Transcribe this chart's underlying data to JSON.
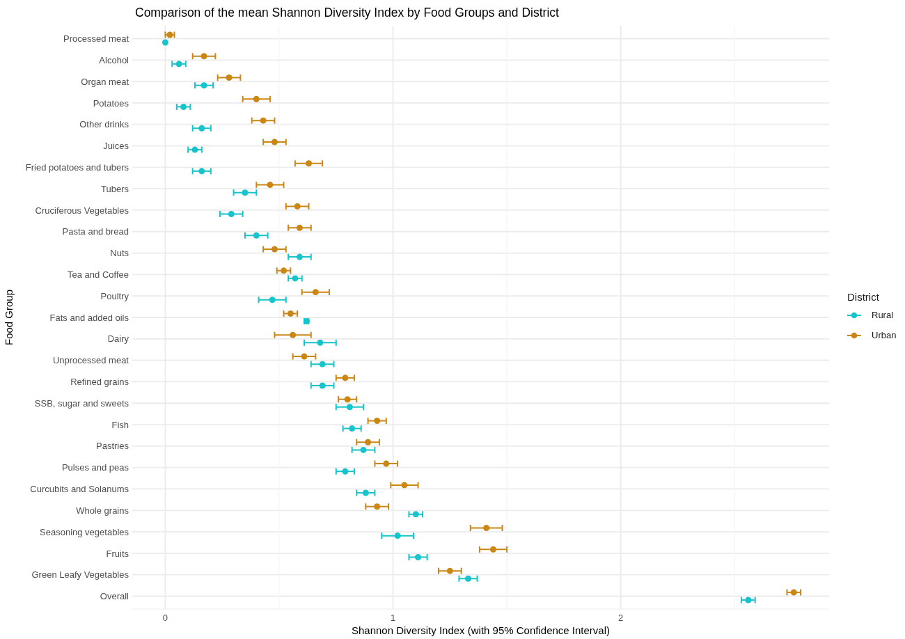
{
  "chart_data": {
    "type": "scatter",
    "orientation": "horizontal",
    "title": "Comparison of the mean Shannon Diversity Index by Food Groups and District",
    "xlabel": "Shannon Diversity Index (with 95% Confidence Interval)",
    "ylabel": "Food Group",
    "legend_title": "District",
    "categories": [
      "Processed meat",
      "Alcohol",
      "Organ meat",
      "Potatoes",
      "Other drinks",
      "Juices",
      "Fried potatoes and tubers",
      "Tubers",
      "Cruciferous Vegetables",
      "Pasta and bread",
      "Nuts",
      "Tea and Coffee",
      "Poultry",
      "Fats and added oils",
      "Dairy",
      "Unprocessed meat",
      "Refined grains",
      "SSB, sugar and sweets",
      "Fish",
      "Pastries",
      "Pulses and peas",
      "Curcubits and Solanums",
      "Whole grains",
      "Seasoning vegetables",
      "Fruits",
      "Green Leafy Vegetables",
      "Overall"
    ],
    "series": [
      {
        "name": "Rural",
        "color": "#17c4cb",
        "values": [
          0.0,
          0.06,
          0.17,
          0.08,
          0.16,
          0.13,
          0.16,
          0.35,
          0.29,
          0.4,
          0.59,
          0.57,
          0.47,
          0.62,
          0.68,
          0.69,
          0.69,
          0.81,
          0.82,
          0.87,
          0.79,
          0.88,
          1.1,
          1.02,
          1.11,
          1.33,
          2.56
        ],
        "errors": [
          null,
          0.03,
          0.04,
          0.03,
          0.04,
          0.03,
          0.04,
          0.05,
          0.05,
          0.05,
          0.05,
          0.03,
          0.06,
          0.01,
          0.07,
          0.05,
          0.05,
          0.06,
          0.04,
          0.05,
          0.04,
          0.04,
          0.03,
          0.07,
          0.04,
          0.04,
          0.03
        ]
      },
      {
        "name": "Urban",
        "color": "#cc8614",
        "values": [
          0.02,
          0.17,
          0.28,
          0.4,
          0.43,
          0.48,
          0.63,
          0.46,
          0.58,
          0.59,
          0.48,
          0.52,
          0.66,
          0.55,
          0.56,
          0.61,
          0.79,
          0.8,
          0.93,
          0.89,
          0.97,
          1.05,
          0.93,
          1.41,
          1.44,
          1.25,
          2.76
        ],
        "errors": [
          0.02,
          0.05,
          0.05,
          0.06,
          0.05,
          0.05,
          0.06,
          0.06,
          0.05,
          0.05,
          0.05,
          0.03,
          0.06,
          0.03,
          0.08,
          0.05,
          0.04,
          0.04,
          0.04,
          0.05,
          0.05,
          0.06,
          0.05,
          0.07,
          0.06,
          0.05,
          0.03
        ]
      }
    ],
    "xlim": [
      -0.145,
      2.915
    ],
    "xticks": [
      0,
      {
        "value": 0.5,
        "label": null
      },
      1,
      {
        "value": 1.5,
        "label": null
      },
      2,
      {
        "value": 2.5,
        "label": null
      }
    ],
    "marker": "circle",
    "grid": true,
    "legend": "right"
  }
}
